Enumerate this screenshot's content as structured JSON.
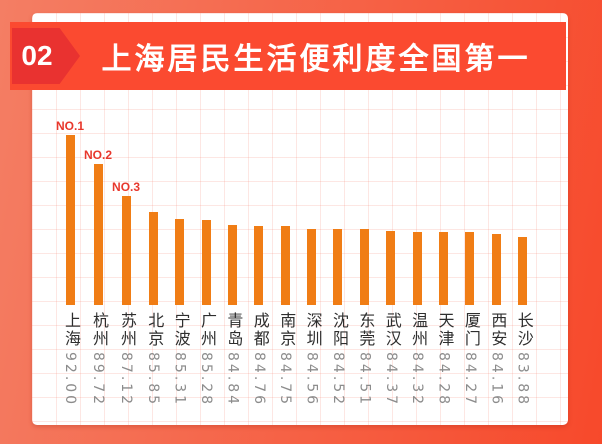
{
  "page": {
    "bg_gradient_start": "#F47E64",
    "bg_gradient_end": "#F7492B"
  },
  "header": {
    "badge": "02",
    "badge_color": "#E93230",
    "banner_color": "#FB4A30",
    "title": "上海居民生活便利度全国第一",
    "title_color": "#FFFFFF"
  },
  "chart_data": {
    "type": "bar",
    "title": "上海居民生活便利度全国第一",
    "categories": [
      "上海",
      "杭州",
      "苏州",
      "北京",
      "宁波",
      "广州",
      "青岛",
      "成都",
      "南京",
      "深圳",
      "沈阳",
      "东莞",
      "武汉",
      "温州",
      "天津",
      "厦门",
      "西安",
      "长沙"
    ],
    "values": [
      92.0,
      89.72,
      87.12,
      85.85,
      85.31,
      85.28,
      84.84,
      84.76,
      84.75,
      84.56,
      84.52,
      84.51,
      84.37,
      84.32,
      84.28,
      84.27,
      84.16,
      83.88
    ],
    "value_labels": [
      "92.00",
      "89.72",
      "87.12",
      "85.85",
      "85.31",
      "85.28",
      "84.84",
      "84.76",
      "84.75",
      "84.56",
      "84.52",
      "84.51",
      "84.37",
      "84.32",
      "84.28",
      "84.27",
      "84.16",
      "83.88"
    ],
    "rank_labels": [
      "NO.1",
      "NO.2",
      "NO.3"
    ],
    "xlabel": "",
    "ylabel": "",
    "ylim": [
      78.5,
      92
    ],
    "grid": true,
    "legend": false,
    "bar_color": "#F07D15",
    "rank_label_color": "#E8372C",
    "category_color": "#2E2E2E",
    "value_color": "#8C8C8C"
  }
}
